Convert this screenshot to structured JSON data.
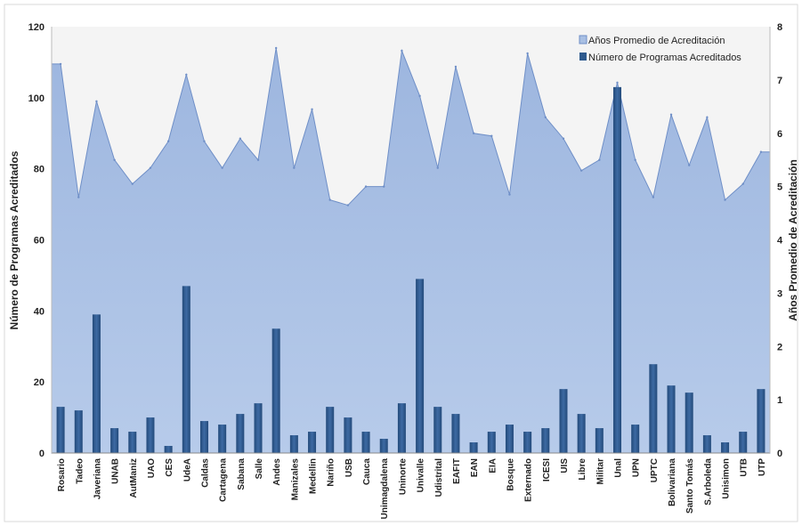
{
  "chart_data": {
    "type": "bar",
    "combo": "area (right axis) + bar (left axis)",
    "categories": [
      "Rosario",
      "Tadeo",
      "Javeriana",
      "UNAB",
      "AutManiz",
      "UAO",
      "CES",
      "UdeA",
      "Caldas",
      "Cartagena",
      "Sabana",
      "Salle",
      "Andes",
      "Manizales",
      "Medellin",
      "Nariño",
      "USB",
      "Cauca",
      "Unimagdalena",
      "Uninorte",
      "Univalle",
      "Udistrital",
      "EAFIT",
      "EAN",
      "EIA",
      "Bosque",
      "Externado",
      "ICESI",
      "UIS",
      "Libre",
      "Militar",
      "Unal",
      "UPN",
      "UPTC",
      "Bolivariana",
      "Santo Tomás",
      "S.Arboleda",
      "Unisimon",
      "UTB",
      "UTP"
    ],
    "series": [
      {
        "name": "Años Promedio de Acreditación",
        "kind": "area",
        "axis": "right",
        "color": "#8eaadb",
        "values": [
          7.3,
          4.8,
          6.6,
          5.5,
          5.05,
          5.35,
          5.85,
          7.1,
          5.85,
          5.35,
          5.9,
          5.5,
          7.6,
          5.35,
          6.45,
          4.75,
          4.65,
          5.0,
          5.0,
          7.55,
          6.7,
          5.35,
          7.25,
          6.0,
          5.95,
          4.85,
          7.5,
          6.3,
          5.9,
          5.3,
          5.5,
          6.95,
          5.5,
          4.8,
          6.35,
          5.4,
          6.3,
          4.75,
          5.05,
          5.65
        ]
      },
      {
        "name": "Número de Programas Acreditados",
        "kind": "bar",
        "axis": "left",
        "color": "#2e5a8e",
        "values": [
          13,
          12,
          39,
          7,
          6,
          10,
          2,
          47,
          9,
          8,
          11,
          14,
          35,
          5,
          6,
          13,
          10,
          6,
          4,
          14,
          49,
          13,
          11,
          3,
          6,
          8,
          6,
          7,
          18,
          11,
          7,
          103,
          8,
          25,
          19,
          17,
          5,
          3,
          6,
          18
        ]
      }
    ],
    "y_left": {
      "label": "Número de Programas Acreditados",
      "ticks": [
        "0",
        "20",
        "40",
        "60",
        "80",
        "100",
        "120"
      ],
      "min": 0,
      "max": 120
    },
    "y_right": {
      "label": "Años Promedio de Acreditación",
      "ticks": [
        "0",
        "1",
        "2",
        "3",
        "4",
        "5",
        "6",
        "7",
        "8"
      ],
      "min": 0,
      "max": 8
    },
    "legend": {
      "placement": "top-right"
    },
    "grid": false
  },
  "colors": {
    "area_fill": "#a8bfe3",
    "area_edge": "#6f8fc7",
    "bar_fill": "#2e5a8e",
    "plot_bg": "#f3f3f3"
  }
}
